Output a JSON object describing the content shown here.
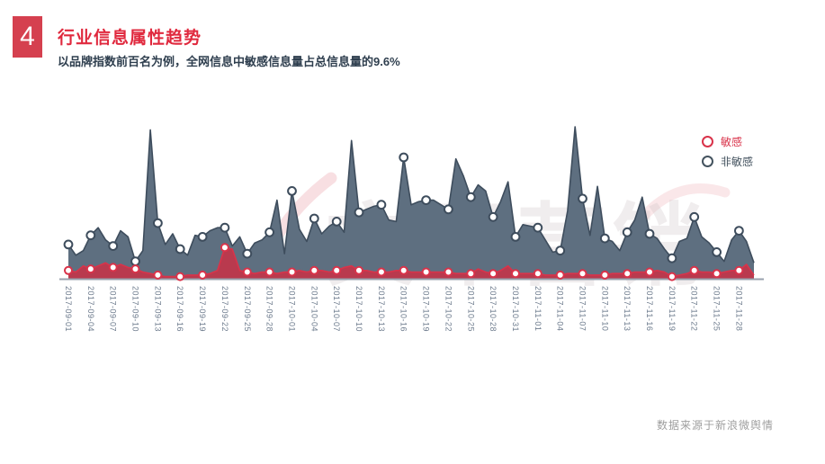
{
  "header": {
    "badge": "4",
    "title": "行业信息属性趋势",
    "subtitle": "以品牌指数前百名为例，全网信息中敏感信息量占总信息量的9.6%"
  },
  "legend": {
    "items": [
      {
        "label": "敏感",
        "color": "#d9334a"
      },
      {
        "label": "非敏感",
        "color": "#44535f"
      }
    ]
  },
  "watermark": {
    "text": "文军营销"
  },
  "footer": {
    "source": "数据来源于新浪微舆情"
  },
  "colors": {
    "accent_red": "#d5404f",
    "title_red": "#e0293e",
    "subtitle_dark": "#2e3e4e",
    "axis_line": "#98a2ae",
    "axis_label": "#6d7b8d",
    "footer_gray": "#9e9e9e"
  },
  "chart_data": {
    "type": "area",
    "title": "",
    "xlabel": "",
    "ylabel": "",
    "ylim": [
      0,
      100
    ],
    "grid": false,
    "legend_position": "top-right",
    "note": "no visible y-axis; values are relative units where 100 = tallest peak (2017-11-06 spike)",
    "x_labels": [
      "2017-09-01",
      "2017-09-04",
      "2017-09-07",
      "2017-09-10",
      "2017-09-13",
      "2017-09-16",
      "2017-09-19",
      "2017-09-22",
      "2017-09-25",
      "2017-09-28",
      "2017-10-01",
      "2017-10-04",
      "2017-10-07",
      "2017-10-10",
      "2017-10-13",
      "2017-10-16",
      "2017-10-19",
      "2017-10-22",
      "2017-10-25",
      "2017-10-28",
      "2017-10-31",
      "2017-11-01",
      "2017-11-04",
      "2017-11-07",
      "2017-11-10",
      "2017-11-13",
      "2017-11-16",
      "2017-11-19",
      "2017-11-22",
      "2017-11-25",
      "2017-11-28"
    ],
    "marker_every": 3,
    "series": [
      {
        "name": "非敏感",
        "fill": "#5e6f80",
        "line": "#3e4d5d",
        "marker_stroke": "#3e4d5d",
        "values_dense": [
          23,
          16,
          19,
          29,
          34,
          26,
          22,
          32,
          28,
          12,
          19,
          98,
          37,
          23,
          30,
          20,
          16,
          29,
          28,
          32,
          34,
          34,
          22,
          28,
          17,
          24,
          26,
          31,
          52,
          17,
          58,
          33,
          25,
          40,
          30,
          35,
          38,
          31,
          91,
          44,
          46,
          48,
          49,
          39,
          38,
          80,
          49,
          51,
          52,
          52,
          49,
          46,
          79,
          68,
          54,
          62,
          58,
          41,
          51,
          64,
          28,
          36,
          35,
          34,
          26,
          18,
          19,
          45,
          100,
          53,
          29,
          61,
          27,
          25,
          19,
          31,
          39,
          54,
          30,
          27,
          20,
          14,
          25,
          27,
          41,
          28,
          24,
          18,
          12,
          26,
          32,
          25,
          11
        ],
        "marker_values": [
          23,
          29,
          22,
          12,
          37,
          20,
          28,
          34,
          17,
          31,
          58,
          40,
          38,
          44,
          49,
          80,
          52,
          46,
          54,
          41,
          28,
          34,
          19,
          53,
          27,
          31,
          30,
          14,
          41,
          18,
          32
        ]
      },
      {
        "name": "敏感",
        "fill": "#b93a4e",
        "line": "#d9334a",
        "marker_stroke": "#d9334a",
        "values_dense": [
          6,
          5,
          9,
          7,
          9,
          11,
          8,
          10,
          8,
          7,
          5,
          4,
          3,
          2,
          2,
          2,
          3,
          3,
          3,
          4,
          6,
          21,
          20,
          6,
          5,
          4,
          5,
          5,
          4,
          5,
          5,
          6,
          5,
          6,
          6,
          5,
          6,
          8,
          9,
          6,
          6,
          5,
          5,
          5,
          6,
          6,
          5,
          5,
          5,
          5,
          5,
          5,
          4,
          4,
          4,
          7,
          5,
          4,
          6,
          9,
          4,
          4,
          4,
          4,
          3,
          3,
          3,
          4,
          4,
          4,
          3,
          3,
          3,
          4,
          4,
          4,
          5,
          5,
          5,
          6,
          5,
          2,
          3,
          4,
          6,
          5,
          5,
          4,
          5,
          6,
          6,
          10,
          3
        ],
        "marker_values": [
          6,
          7,
          8,
          7,
          3,
          2,
          3,
          21,
          5,
          5,
          5,
          6,
          6,
          6,
          5,
          6,
          5,
          5,
          4,
          4,
          4,
          4,
          3,
          4,
          3,
          4,
          5,
          2,
          6,
          4,
          6
        ]
      }
    ]
  }
}
